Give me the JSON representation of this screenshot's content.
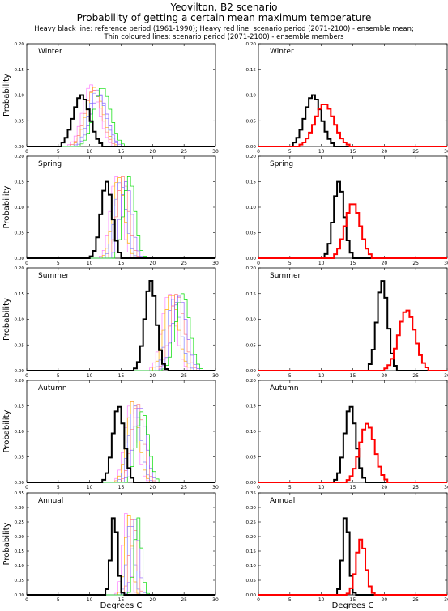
{
  "header": {
    "title": "Yeovilton, B2 scenario",
    "subtitle": "Probability of getting a certain mean maximum temperature",
    "legend_line1": "Heavy black line: reference period (1961-1990); Heavy red line: scenario period (2071-2100) - ensemble mean;",
    "legend_line2": "Thin coloured lines: scenario period (2071-2100) - ensemble members"
  },
  "colors": {
    "reference": "#000000",
    "ensemble_mean": "#ff0000",
    "members": [
      "#ff80ff",
      "#ffb000",
      "#8080ff",
      "#ff8080",
      "#9060ff",
      "#00dd00"
    ]
  },
  "axis_labels": {
    "ylabel": "Probability",
    "xlabel": "Degrees C"
  },
  "chart_data": [
    {
      "type": "line",
      "season": "Winter",
      "column": "members",
      "xlim": [
        0,
        30
      ],
      "ylim": [
        0,
        0.2
      ],
      "yticks": [
        0,
        0.05,
        0.1,
        0.15,
        0.2
      ],
      "xticks": [
        0,
        5,
        10,
        15,
        20,
        25,
        30
      ],
      "grid": false,
      "reference": {
        "mean": 8.7,
        "sd": 1.3,
        "peak": 0.1
      },
      "ensemble_mean": {
        "mean": 10.5,
        "sd": 1.5,
        "peak": 0.085
      },
      "members": [
        {
          "mean": 10.2,
          "sd": 1.3,
          "peak": 0.12
        },
        {
          "mean": 10.8,
          "sd": 1.3,
          "peak": 0.115
        },
        {
          "mean": 11.2,
          "sd": 1.3,
          "peak": 0.11
        },
        {
          "mean": 10.6,
          "sd": 1.3,
          "peak": 0.11
        },
        {
          "mean": 11.5,
          "sd": 1.3,
          "peak": 0.1
        },
        {
          "mean": 12.0,
          "sd": 1.3,
          "peak": 0.115
        }
      ]
    },
    {
      "type": "line",
      "season": "Winter",
      "column": "mean",
      "xlim": [
        0,
        30
      ],
      "ylim": [
        0,
        0.2
      ],
      "yticks": [
        0,
        0.05,
        0.1,
        0.15,
        0.2
      ],
      "xticks": [
        0,
        5,
        10,
        15,
        20,
        25,
        30
      ],
      "grid": false,
      "reference": {
        "mean": 8.7,
        "sd": 1.3,
        "peak": 0.1
      },
      "ensemble_mean": {
        "mean": 10.5,
        "sd": 1.5,
        "peak": 0.083
      },
      "members": []
    },
    {
      "type": "line",
      "season": "Spring",
      "column": "members",
      "xlim": [
        0,
        30
      ],
      "ylim": [
        0,
        0.2
      ],
      "yticks": [
        0,
        0.05,
        0.1,
        0.15,
        0.2
      ],
      "xticks": [
        0,
        5,
        10,
        15,
        20,
        25,
        30
      ],
      "grid": false,
      "reference": {
        "mean": 12.7,
        "sd": 0.9,
        "peak": 0.15
      },
      "ensemble_mean": {
        "mean": 15.0,
        "sd": 1.2,
        "peak": 0.11
      },
      "members": [
        {
          "mean": 14.2,
          "sd": 0.9,
          "peak": 0.16
        },
        {
          "mean": 14.6,
          "sd": 0.9,
          "peak": 0.16
        },
        {
          "mean": 14.9,
          "sd": 0.9,
          "peak": 0.15
        },
        {
          "mean": 15.3,
          "sd": 0.9,
          "peak": 0.16
        },
        {
          "mean": 15.8,
          "sd": 0.9,
          "peak": 0.15
        },
        {
          "mean": 16.3,
          "sd": 0.9,
          "peak": 0.16
        }
      ]
    },
    {
      "type": "line",
      "season": "Spring",
      "column": "mean",
      "xlim": [
        0,
        30
      ],
      "ylim": [
        0,
        0.2
      ],
      "yticks": [
        0,
        0.05,
        0.1,
        0.15,
        0.2
      ],
      "xticks": [
        0,
        5,
        10,
        15,
        20,
        25,
        30
      ],
      "grid": false,
      "reference": {
        "mean": 12.8,
        "sd": 0.85,
        "peak": 0.15
      },
      "ensemble_mean": {
        "mean": 15.0,
        "sd": 1.2,
        "peak": 0.108
      },
      "members": []
    },
    {
      "type": "line",
      "season": "Summer",
      "column": "members",
      "xlim": [
        0,
        30
      ],
      "ylim": [
        0,
        0.2
      ],
      "yticks": [
        0,
        0.05,
        0.1,
        0.15,
        0.2
      ],
      "xticks": [
        0,
        5,
        10,
        15,
        20,
        25,
        30
      ],
      "grid": false,
      "reference": {
        "mean": 19.7,
        "sd": 0.9,
        "peak": 0.175
      },
      "ensemble_mean": {
        "mean": 23.6,
        "sd": 1.3,
        "peak": 0.12
      },
      "members": [
        {
          "mean": 22.6,
          "sd": 1.1,
          "peak": 0.15
        },
        {
          "mean": 23.0,
          "sd": 1.1,
          "peak": 0.15
        },
        {
          "mean": 23.4,
          "sd": 1.1,
          "peak": 0.14
        },
        {
          "mean": 23.9,
          "sd": 1.1,
          "peak": 0.15
        },
        {
          "mean": 24.3,
          "sd": 1.1,
          "peak": 0.145
        },
        {
          "mean": 24.8,
          "sd": 1.1,
          "peak": 0.15
        }
      ]
    },
    {
      "type": "line",
      "season": "Summer",
      "column": "mean",
      "xlim": [
        0,
        30
      ],
      "ylim": [
        0,
        0.2
      ],
      "yticks": [
        0,
        0.05,
        0.1,
        0.15,
        0.2
      ],
      "xticks": [
        0,
        5,
        10,
        15,
        20,
        25,
        30
      ],
      "grid": false,
      "reference": {
        "mean": 19.7,
        "sd": 0.85,
        "peak": 0.175
      },
      "ensemble_mean": {
        "mean": 23.6,
        "sd": 1.3,
        "peak": 0.118
      },
      "members": []
    },
    {
      "type": "line",
      "season": "Autumn",
      "column": "members",
      "xlim": [
        0,
        30
      ],
      "ylim": [
        0,
        0.2
      ],
      "yticks": [
        0,
        0.05,
        0.1,
        0.15,
        0.2
      ],
      "xticks": [
        0,
        5,
        10,
        15,
        20,
        25,
        30
      ],
      "grid": false,
      "reference": {
        "mean": 14.6,
        "sd": 0.9,
        "peak": 0.15
      },
      "ensemble_mean": {
        "mean": 17.3,
        "sd": 1.2,
        "peak": 0.115
      },
      "members": [
        {
          "mean": 16.6,
          "sd": 0.95,
          "peak": 0.16
        },
        {
          "mean": 16.9,
          "sd": 0.95,
          "peak": 0.16
        },
        {
          "mean": 17.2,
          "sd": 0.95,
          "peak": 0.15
        },
        {
          "mean": 17.6,
          "sd": 0.95,
          "peak": 0.155
        },
        {
          "mean": 18.0,
          "sd": 0.95,
          "peak": 0.15
        },
        {
          "mean": 18.4,
          "sd": 0.95,
          "peak": 0.14
        }
      ]
    },
    {
      "type": "line",
      "season": "Autumn",
      "column": "mean",
      "xlim": [
        0,
        30
      ],
      "ylim": [
        0,
        0.2
      ],
      "yticks": [
        0,
        0.05,
        0.1,
        0.15,
        0.2
      ],
      "xticks": [
        0,
        5,
        10,
        15,
        20,
        25,
        30
      ],
      "grid": false,
      "reference": {
        "mean": 14.6,
        "sd": 0.9,
        "peak": 0.15
      },
      "ensemble_mean": {
        "mean": 17.3,
        "sd": 1.2,
        "peak": 0.115
      },
      "members": []
    },
    {
      "type": "line",
      "season": "Annual",
      "column": "members",
      "xlim": [
        0,
        30
      ],
      "ylim": [
        0,
        0.35
      ],
      "yticks": [
        0,
        0.05,
        0.1,
        0.15,
        0.2,
        0.25,
        0.3,
        0.35
      ],
      "xticks": [
        0,
        5,
        10,
        15,
        20,
        25,
        30
      ],
      "grid": false,
      "reference": {
        "mean": 13.9,
        "sd": 0.5,
        "peak": 0.275
      },
      "ensemble_mean": {
        "mean": 16.5,
        "sd": 0.9,
        "peak": 0.19
      },
      "members": [
        {
          "mean": 15.8,
          "sd": 0.55,
          "peak": 0.28
        },
        {
          "mean": 16.2,
          "sd": 0.55,
          "peak": 0.275
        },
        {
          "mean": 16.5,
          "sd": 0.55,
          "peak": 0.26
        },
        {
          "mean": 16.9,
          "sd": 0.55,
          "peak": 0.27
        },
        {
          "mean": 17.3,
          "sd": 0.55,
          "peak": 0.26
        },
        {
          "mean": 17.7,
          "sd": 0.55,
          "peak": 0.265
        }
      ]
    },
    {
      "type": "line",
      "season": "Annual",
      "column": "mean",
      "xlim": [
        0,
        30
      ],
      "ylim": [
        0,
        0.35
      ],
      "yticks": [
        0,
        0.05,
        0.1,
        0.15,
        0.2,
        0.25,
        0.3,
        0.35
      ],
      "xticks": [
        0,
        5,
        10,
        15,
        20,
        25,
        30
      ],
      "grid": false,
      "reference": {
        "mean": 13.9,
        "sd": 0.5,
        "peak": 0.275
      },
      "ensemble_mean": {
        "mean": 16.3,
        "sd": 0.75,
        "peak": 0.19
      },
      "members": []
    }
  ]
}
